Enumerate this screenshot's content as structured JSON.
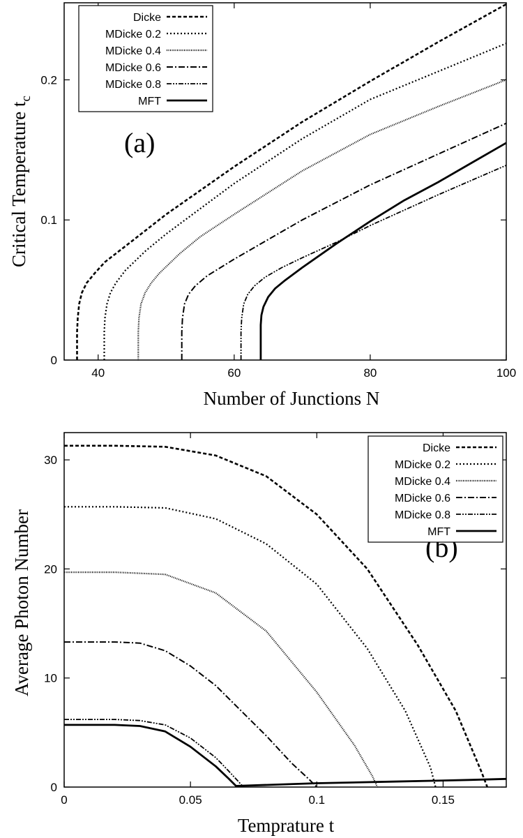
{
  "line_styles": {
    "Dicke": {
      "dash": "5,3",
      "width": 2.6
    },
    "MDicke 0.2": {
      "dash": "2,3",
      "width": 2.2
    },
    "MDicke 0.4": {
      "dash": "1,1.5",
      "width": 2.2
    },
    "MDicke 0.6": {
      "dash": "9,3,2,3",
      "width": 2.0
    },
    "MDicke 0.8": {
      "dash": "7,2,2,2,2,2",
      "width": 1.8
    },
    "MFT": {
      "dash": "",
      "width": 2.8
    }
  },
  "chart_data": [
    {
      "type": "line",
      "panel_label": "(a)",
      "title": "",
      "xlabel": "Number of Junctions N",
      "ylabel_main": "Critical Temperature t",
      "ylabel_sub": "c",
      "xlim": [
        35,
        100
      ],
      "ylim": [
        0,
        0.255
      ],
      "xticks": [
        {
          "value": 40,
          "label": "40"
        },
        {
          "value": 60,
          "label": "60"
        },
        {
          "value": 80,
          "label": "80"
        },
        {
          "value": 100,
          "label": "100"
        }
      ],
      "yticks": [
        {
          "value": 0,
          "label": "0"
        },
        {
          "value": 0.1,
          "label": "0.1"
        },
        {
          "value": 0.2,
          "label": "0.2"
        }
      ],
      "legend": {
        "position": "top-left"
      },
      "series": [
        {
          "name": "Dicke",
          "x": [
            36.9,
            36.9,
            37.0,
            37.2,
            37.6,
            38.3,
            39.5,
            41,
            45,
            50,
            60,
            70,
            80,
            90,
            100
          ],
          "y": [
            0,
            0.02,
            0.03,
            0.04,
            0.048,
            0.055,
            0.062,
            0.07,
            0.085,
            0.104,
            0.138,
            0.17,
            0.199,
            0.227,
            0.254
          ]
        },
        {
          "name": "MDicke 0.2",
          "x": [
            40.9,
            40.9,
            41.0,
            41.3,
            41.8,
            42.6,
            44,
            47,
            50,
            60,
            70,
            80,
            90,
            100
          ],
          "y": [
            0,
            0.02,
            0.03,
            0.04,
            0.048,
            0.055,
            0.064,
            0.078,
            0.09,
            0.126,
            0.158,
            0.186,
            0.206,
            0.226
          ]
        },
        {
          "name": "MDicke 0.4",
          "x": [
            45.9,
            45.9,
            46.0,
            46.3,
            46.9,
            47.8,
            49,
            52,
            55,
            60,
            70,
            80,
            90,
            100
          ],
          "y": [
            0,
            0.02,
            0.03,
            0.04,
            0.048,
            0.055,
            0.062,
            0.076,
            0.088,
            0.104,
            0.135,
            0.161,
            0.181,
            0.2
          ]
        },
        {
          "name": "MDicke 0.6",
          "x": [
            52.3,
            52.3,
            52.4,
            52.7,
            53.3,
            54.3,
            56,
            60,
            65,
            70,
            80,
            90,
            100
          ],
          "y": [
            0,
            0.02,
            0.03,
            0.04,
            0.047,
            0.053,
            0.06,
            0.072,
            0.086,
            0.1,
            0.125,
            0.147,
            0.169
          ]
        },
        {
          "name": "MDicke 0.8",
          "x": [
            61.0,
            61.0,
            61.1,
            61.4,
            62.0,
            63.0,
            64.5,
            67,
            70,
            75,
            80,
            90,
            100
          ],
          "y": [
            0,
            0.02,
            0.03,
            0.04,
            0.047,
            0.053,
            0.059,
            0.066,
            0.073,
            0.084,
            0.096,
            0.118,
            0.139
          ]
        },
        {
          "name": "MFT",
          "x": [
            63.9,
            63.9,
            64.0,
            64.3,
            65.0,
            66.0,
            67.5,
            70,
            75,
            80,
            85,
            90,
            95,
            100
          ],
          "y": [
            0,
            0.025,
            0.032,
            0.038,
            0.045,
            0.051,
            0.057,
            0.066,
            0.083,
            0.099,
            0.114,
            0.127,
            0.141,
            0.155
          ]
        }
      ]
    },
    {
      "type": "line",
      "panel_label": "(b)",
      "title": "",
      "xlabel": "Temprature t",
      "ylabel": "Average Photon Number",
      "xlim": [
        0,
        0.175
      ],
      "ylim": [
        0,
        32.5
      ],
      "xticks": [
        {
          "value": 0,
          "label": "0"
        },
        {
          "value": 0.05,
          "label": "0.05"
        },
        {
          "value": 0.1,
          "label": "0.1"
        },
        {
          "value": 0.15,
          "label": "0.15"
        }
      ],
      "yticks": [
        {
          "value": 0,
          "label": "0"
        },
        {
          "value": 10,
          "label": "10"
        },
        {
          "value": 20,
          "label": "20"
        },
        {
          "value": 30,
          "label": "30"
        }
      ],
      "legend": {
        "position": "top-right"
      },
      "series": [
        {
          "name": "Dicke",
          "x": [
            0,
            0.02,
            0.04,
            0.06,
            0.08,
            0.1,
            0.12,
            0.14,
            0.155,
            0.165,
            0.1675
          ],
          "y": [
            31.3,
            31.3,
            31.2,
            30.4,
            28.5,
            25.0,
            20.0,
            13.0,
            7.0,
            1.5,
            0
          ]
        },
        {
          "name": "MDicke 0.2",
          "x": [
            0,
            0.02,
            0.04,
            0.06,
            0.08,
            0.1,
            0.12,
            0.135,
            0.145,
            0.147
          ],
          "y": [
            25.7,
            25.7,
            25.6,
            24.6,
            22.3,
            18.6,
            12.7,
            7.0,
            1.8,
            0
          ]
        },
        {
          "name": "MDicke 0.4",
          "x": [
            0,
            0.02,
            0.04,
            0.06,
            0.08,
            0.1,
            0.115,
            0.122,
            0.124
          ],
          "y": [
            19.7,
            19.7,
            19.5,
            17.8,
            14.3,
            8.7,
            3.8,
            1.0,
            0
          ]
        },
        {
          "name": "MDicke 0.6",
          "x": [
            0,
            0.02,
            0.03,
            0.04,
            0.05,
            0.06,
            0.07,
            0.08,
            0.09,
            0.097,
            0.1
          ],
          "y": [
            13.3,
            13.3,
            13.2,
            12.5,
            11.1,
            9.3,
            7.0,
            4.7,
            2.2,
            0.7,
            0
          ]
        },
        {
          "name": "MDicke 0.8",
          "x": [
            0,
            0.02,
            0.03,
            0.04,
            0.05,
            0.06,
            0.065,
            0.069,
            0.071
          ],
          "y": [
            6.2,
            6.2,
            6.1,
            5.7,
            4.5,
            2.7,
            1.5,
            0.5,
            0
          ]
        },
        {
          "name": "MFT",
          "x": [
            0,
            0.02,
            0.03,
            0.04,
            0.05,
            0.06,
            0.065,
            0.068,
            0.1,
            0.13,
            0.16,
            0.175
          ],
          "y": [
            5.7,
            5.7,
            5.6,
            5.1,
            3.7,
            1.9,
            0.8,
            0.1,
            0.35,
            0.5,
            0.65,
            0.75
          ]
        }
      ]
    }
  ]
}
